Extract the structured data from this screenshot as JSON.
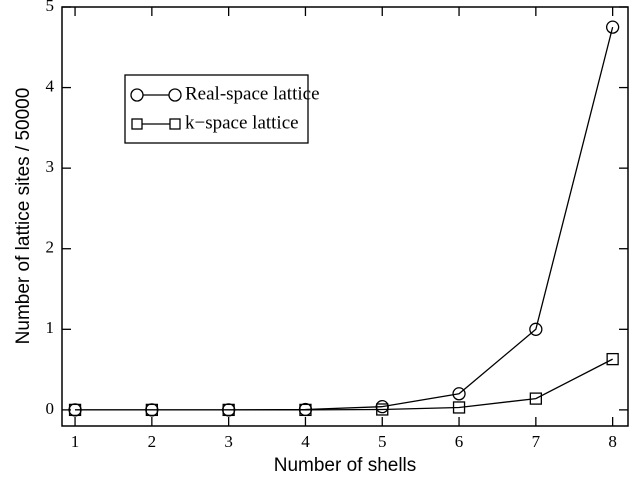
{
  "chart_data": {
    "type": "line",
    "x": [
      1,
      2,
      3,
      4,
      5,
      6,
      7,
      8
    ],
    "series": [
      {
        "name": "Real-space lattice",
        "color": "#000000",
        "marker": "circle",
        "values": [
          0,
          0,
          0,
          0.005,
          0.04,
          0.2,
          1.0,
          4.75
        ]
      },
      {
        "name": "k−space lattice",
        "color": "#000000",
        "marker": "square",
        "values": [
          0,
          0,
          0,
          0,
          0.005,
          0.03,
          0.14,
          0.63
        ]
      }
    ],
    "xlabel": "Number of shells",
    "ylabel": "Number of lattice sites / 50000",
    "xlim": [
      0.83,
      8.2
    ],
    "ylim": [
      -0.2,
      5
    ],
    "xticks": [
      1,
      2,
      3,
      4,
      5,
      6,
      7,
      8
    ],
    "yticks": [
      0,
      1,
      2,
      3,
      4,
      5
    ],
    "grid": false
  }
}
